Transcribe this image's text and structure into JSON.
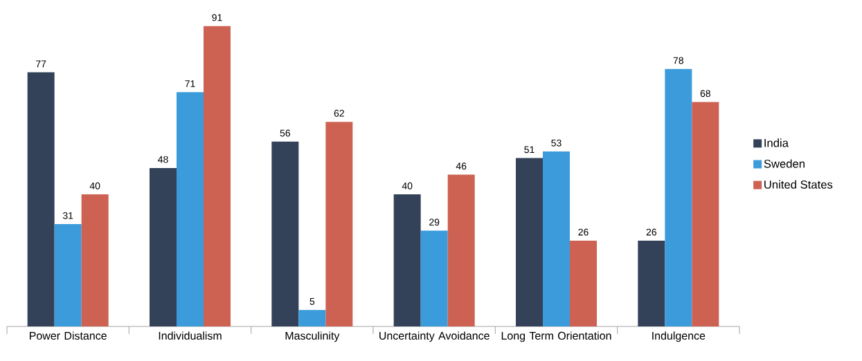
{
  "chart_data": {
    "type": "bar",
    "categories": [
      "Power Distance",
      "Individualism",
      "Masculinity",
      "Uncertainty Avoidance",
      "Long Term Orientation",
      "Indulgence"
    ],
    "series": [
      {
        "name": "India",
        "color": "#334259",
        "values": [
          77,
          48,
          56,
          40,
          51,
          26
        ]
      },
      {
        "name": "Sweden",
        "color": "#3b9bdb",
        "values": [
          31,
          71,
          5,
          29,
          53,
          78
        ]
      },
      {
        "name": "United States",
        "color": "#cd6253",
        "values": [
          40,
          91,
          62,
          46,
          26,
          68
        ]
      }
    ],
    "data_labels": true,
    "legend": "right"
  }
}
